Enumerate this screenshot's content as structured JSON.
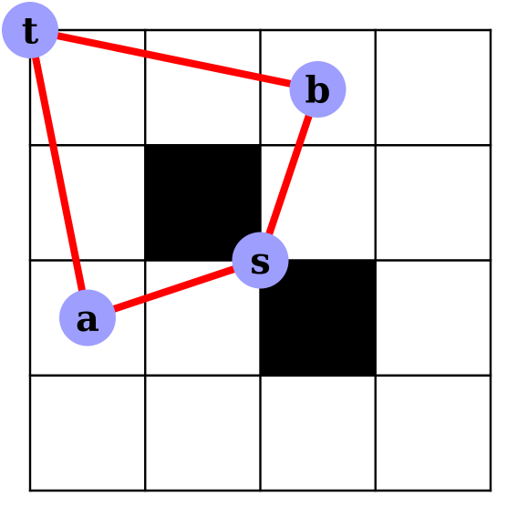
{
  "grid": {
    "rows": 4,
    "cols": 4,
    "blocked": [
      {
        "row": 1,
        "col": 1
      },
      {
        "row": 2,
        "col": 2
      }
    ]
  },
  "nodes": [
    {
      "id": "t",
      "label": "t",
      "row": 0,
      "col": 0,
      "anchor": "top-left"
    },
    {
      "id": "b",
      "label": "b",
      "row": 0,
      "col": 2,
      "anchor": "inner-right"
    },
    {
      "id": "s",
      "label": "s",
      "row": 2,
      "col": 2,
      "anchor": "top-left"
    },
    {
      "id": "a",
      "label": "a",
      "row": 2,
      "col": 0,
      "anchor": "inner-left"
    }
  ],
  "edges": [
    {
      "from": "t",
      "to": "b"
    },
    {
      "from": "b",
      "to": "s"
    },
    {
      "from": "s",
      "to": "a"
    },
    {
      "from": "a",
      "to": "t"
    }
  ],
  "colors": {
    "grid_line": "#000000",
    "blocked_cell": "#000000",
    "edge": "#ff0000",
    "node_fill": "#9e9eff",
    "label": "#000000",
    "background": "#ffffff"
  }
}
